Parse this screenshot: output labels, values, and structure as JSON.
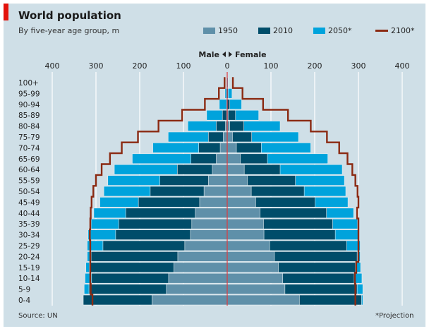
{
  "title": "World population",
  "subtitle": "By five-year age group, m",
  "source": "Source: UN",
  "footnote": "*Projection",
  "colors": {
    "1950": "#5f90a9",
    "2010": "#004d6a",
    "2050": "#00a3dc",
    "2100": "#8b2a12",
    "center_line": "#e0393e",
    "accent": "#e3120b"
  },
  "chart_data": {
    "type": "bar",
    "subtype": "population pyramid",
    "title": "World population",
    "subtitle": "By five-year age group, m",
    "direction_label": {
      "male": "Male",
      "female": "Female"
    },
    "xlim": [
      -400,
      400
    ],
    "x_ticks": [
      "400",
      "300",
      "200",
      "100",
      "0",
      "100",
      "200",
      "300",
      "400"
    ],
    "grid": true,
    "legend_placement": "top-right",
    "categories": [
      "100+",
      "95-99",
      "90-94",
      "85-89",
      "80-84",
      "75-79",
      "70-74",
      "65-69",
      "60-64",
      "55-59",
      "50-54",
      "45-49",
      "40-44",
      "35-39",
      "30-34",
      "25-29",
      "20-24",
      "15-19",
      "10-14",
      "5-9",
      "0-4"
    ],
    "series": [
      {
        "name": "2050*",
        "style": "bar",
        "male": [
          0,
          5,
          18,
          47,
          90,
          135,
          170,
          217,
          258,
          273,
          282,
          291,
          305,
          311,
          318,
          320,
          320,
          323,
          325,
          327,
          325
        ],
        "female": [
          2,
          11,
          33,
          72,
          121,
          163,
          191,
          230,
          263,
          268,
          271,
          276,
          289,
          298,
          300,
          304,
          304,
          305,
          308,
          310,
          310
        ]
      },
      {
        "name": "2010",
        "style": "bar",
        "male": [
          0,
          1,
          1,
          11,
          25,
          43,
          65,
          83,
          114,
          154,
          176,
          203,
          232,
          248,
          255,
          284,
          311,
          315,
          310,
          316,
          329
        ],
        "female": [
          0,
          2,
          6,
          19,
          38,
          56,
          78,
          92,
          121,
          156,
          176,
          201,
          227,
          241,
          247,
          273,
          297,
          293,
          290,
          297,
          307
        ]
      },
      {
        "name": "1950",
        "style": "bar",
        "male": [
          0,
          0,
          0,
          1,
          4,
          9,
          16,
          25,
          34,
          43,
          53,
          63,
          73,
          81,
          84,
          97,
          113,
          122,
          134,
          139,
          172
        ],
        "female": [
          0,
          0,
          0,
          2,
          6,
          12,
          21,
          30,
          39,
          46,
          55,
          65,
          75,
          83,
          84,
          97,
          108,
          117,
          127,
          132,
          165
        ]
      },
      {
        "name": "2100*",
        "style": "step-line",
        "male": [
          6,
          19,
          51,
          103,
          157,
          204,
          241,
          268,
          287,
          300,
          306,
          310,
          312,
          313,
          314,
          313,
          313,
          313,
          313,
          312,
          308
        ],
        "female": [
          13,
          35,
          82,
          139,
          191,
          228,
          256,
          275,
          286,
          293,
          298,
          300,
          297,
          300,
          300,
          300,
          300,
          295,
          292,
          293,
          293
        ]
      }
    ]
  }
}
